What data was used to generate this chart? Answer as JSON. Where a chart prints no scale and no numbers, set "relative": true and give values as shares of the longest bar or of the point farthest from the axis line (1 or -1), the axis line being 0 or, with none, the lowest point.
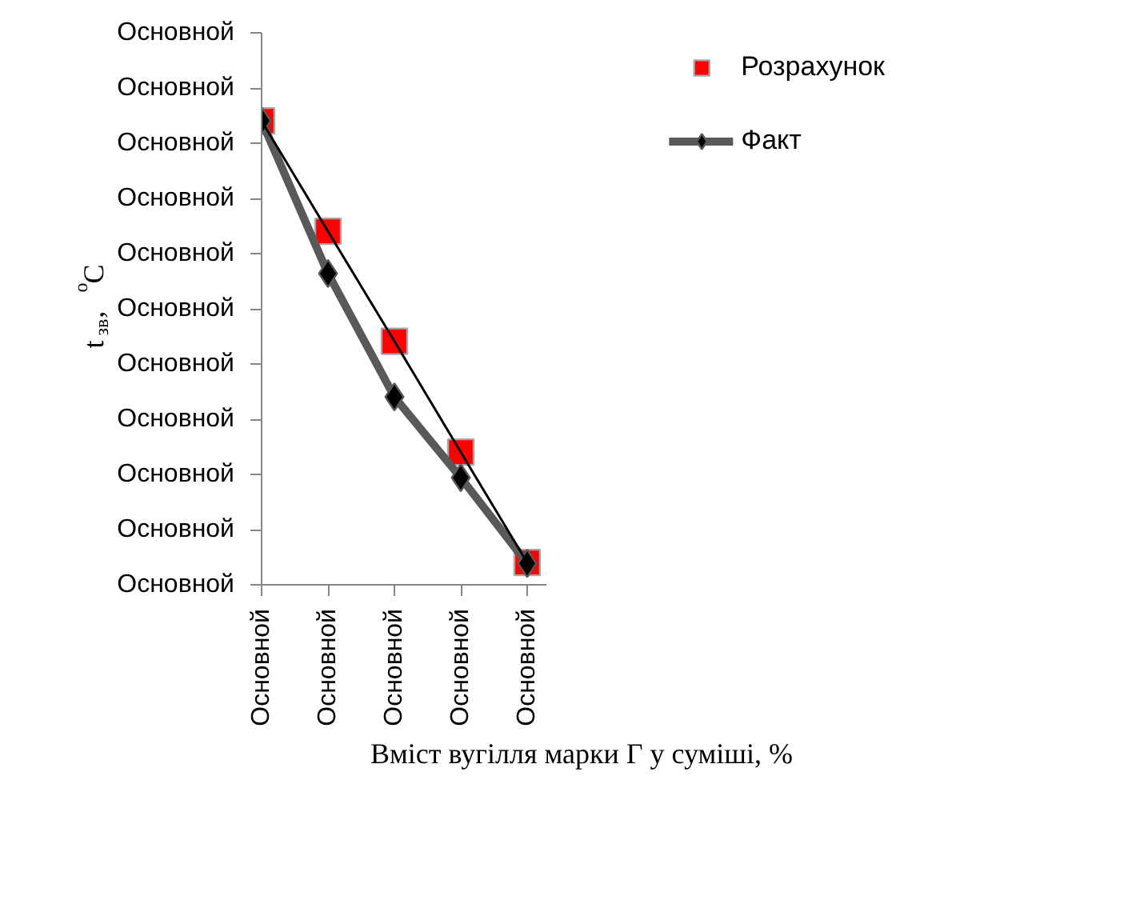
{
  "chart_data": {
    "type": "line",
    "relative": true,
    "xlabel": "Вміст вугілля марки Г у суміші, %",
    "ylabel": "t$_{зв}$, $^{o}$C",
    "categories": [
      "Основной",
      "Основной",
      "Основной",
      "Основной",
      "Основной"
    ],
    "annotations": [
      "Основной",
      "Основной",
      "Основной",
      "Основной",
      "Основной",
      "Основной",
      "Основной",
      "Основной",
      "Основной",
      "Основной",
      "Основной"
    ],
    "series": [
      {
        "name": "Розрахунок",
        "type": "scatter",
        "marker": "square",
        "color": "#ff0000",
        "values": [
          1,
          0.762,
          0.525,
          0.286,
          0.048
        ]
      },
      {
        "name": "Факт",
        "marker": "diamond",
        "color": "#595959",
        "values": [
          1,
          0.671,
          0.405,
          0.231,
          0.046
        ]
      },
      {
        "marker": "none",
        "color": "#000000",
        "values": [
          1,
          0.762,
          0.525,
          0.286,
          0.048
        ]
      }
    ],
    "legend": "top right",
    "grid": false
  }
}
